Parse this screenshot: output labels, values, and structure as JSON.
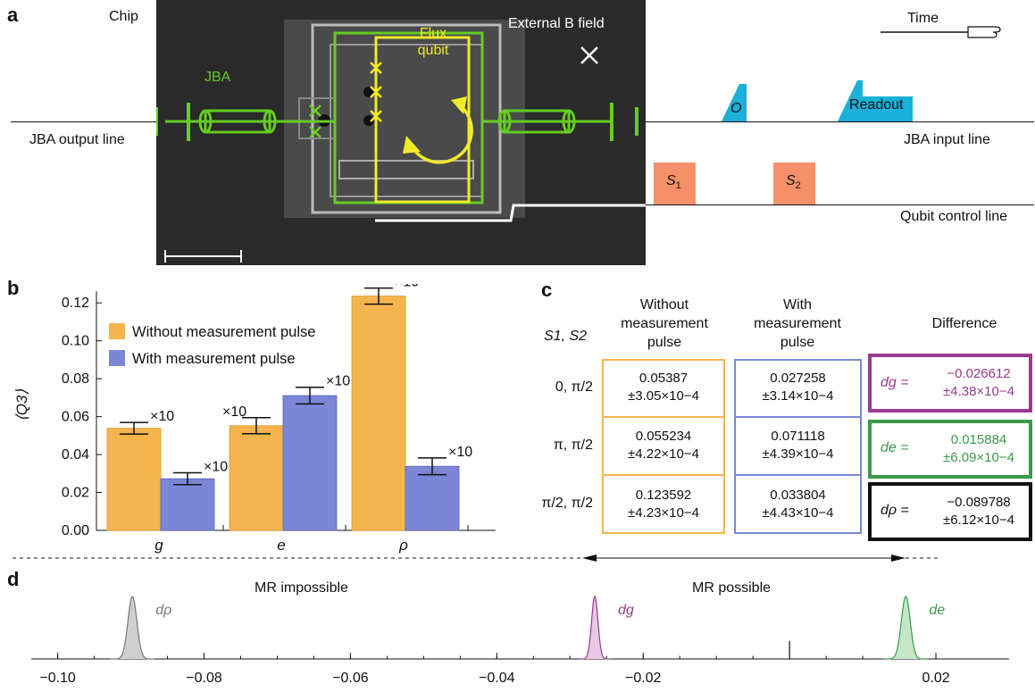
{
  "panel_a": {
    "letter": "a",
    "chip_label": "Chip",
    "jba_label": "JBA",
    "flux_qubit_label_1": "Flux",
    "flux_qubit_label_2": "qubit",
    "external_field_label": "External B field",
    "jba_output_line": "JBA output line",
    "jba_input_line": "JBA input line",
    "qubit_control_line": "Qubit control line",
    "time_label": "Time",
    "pulse_o": "O",
    "pulse_readout": "Readout",
    "pulse_s1": "S",
    "pulse_s1_sub": "1",
    "pulse_s2": "S",
    "pulse_s2_sub": "2",
    "colors": {
      "green": "#66cc22",
      "yellow": "#f0ea2a",
      "cyan": "#1ab0d8",
      "orange": "#f5906a"
    }
  },
  "panel_b": {
    "letter": "b",
    "ylabel": "⟨Q3⟩",
    "legend": [
      "Without measurement pulse",
      "With measurement pulse"
    ],
    "multiplier": "×10"
  },
  "chart_data": [
    {
      "type": "bar",
      "categories": [
        "g",
        "e",
        "ρ"
      ],
      "series": [
        {
          "name": "Without measurement pulse",
          "values": [
            0.05387,
            0.055234,
            0.123592
          ],
          "errors": [
            0.00305,
            0.00422,
            0.00423
          ],
          "color": "#f5b44d"
        },
        {
          "name": "With measurement pulse",
          "values": [
            0.027258,
            0.071118,
            0.033804
          ],
          "errors": [
            0.00314,
            0.00439,
            0.00443
          ],
          "color": "#7b86d6"
        }
      ],
      "error_bar_note": "×10",
      "ylabel": "⟨Q3⟩",
      "ylim": [
        0,
        0.13
      ],
      "yticks": [
        "0.00",
        "0.02",
        "0.04",
        "0.06",
        "0.08",
        "0.10",
        "0.12"
      ]
    },
    {
      "type": "area",
      "title_left": "MR impossible",
      "title_right": "MR possible",
      "xlim": [
        -0.103,
        0.03
      ],
      "xticks": [
        "−0.10",
        "−0.08",
        "−0.06",
        "−0.04",
        "−0.02",
        "0.02"
      ],
      "xtick_values": [
        -0.1,
        -0.08,
        -0.06,
        -0.04,
        -0.02,
        0.02
      ],
      "zero_mark": 0.0,
      "peaks": [
        {
          "name": "dρ",
          "mean": -0.089788,
          "sigma": 0.000612,
          "color": "#777777"
        },
        {
          "name": "dg",
          "mean": -0.026612,
          "sigma": 0.000438,
          "color": "#9b3a8f"
        },
        {
          "name": "de",
          "mean": 0.015884,
          "sigma": 0.000609,
          "color": "#3a9a4a"
        }
      ]
    }
  ],
  "panel_c": {
    "letter": "c",
    "col_settings": "S1, S2",
    "col_without": [
      "Without",
      "measurement",
      "pulse"
    ],
    "col_with": [
      "With",
      "measurement",
      "pulse"
    ],
    "col_diff": "Difference",
    "rows": [
      {
        "settings": "0, π/2",
        "without": [
          "0.05387",
          "±3.05×10−4"
        ],
        "with": [
          "0.027258",
          "±3.14×10−4"
        ],
        "diff_name": "dg =",
        "diff": [
          "−0.026612",
          "±4.38×10−4"
        ],
        "diff_color": "#9b3a8f"
      },
      {
        "settings": "π, π/2",
        "without": [
          "0.055234",
          "±4.22×10−4"
        ],
        "with": [
          "0.071118",
          "±4.39×10−4"
        ],
        "diff_name": "de =",
        "diff": [
          "0.015884",
          "±6.09×10−4"
        ],
        "diff_color": "#3a9a4a"
      },
      {
        "settings": "π/2, π/2",
        "without": [
          "0.123592",
          "±4.23×10−4"
        ],
        "with": [
          "0.033804",
          "±4.43×10−4"
        ],
        "diff_name": "dρ =",
        "diff": [
          "−0.089788",
          "±6.12×10−4"
        ],
        "diff_color": "#111111"
      }
    ]
  },
  "panel_d": {
    "letter": "d",
    "mr_impossible": "MR impossible",
    "mr_possible": "MR possible",
    "peak_labels": [
      "dρ",
      "dg",
      "de"
    ]
  }
}
